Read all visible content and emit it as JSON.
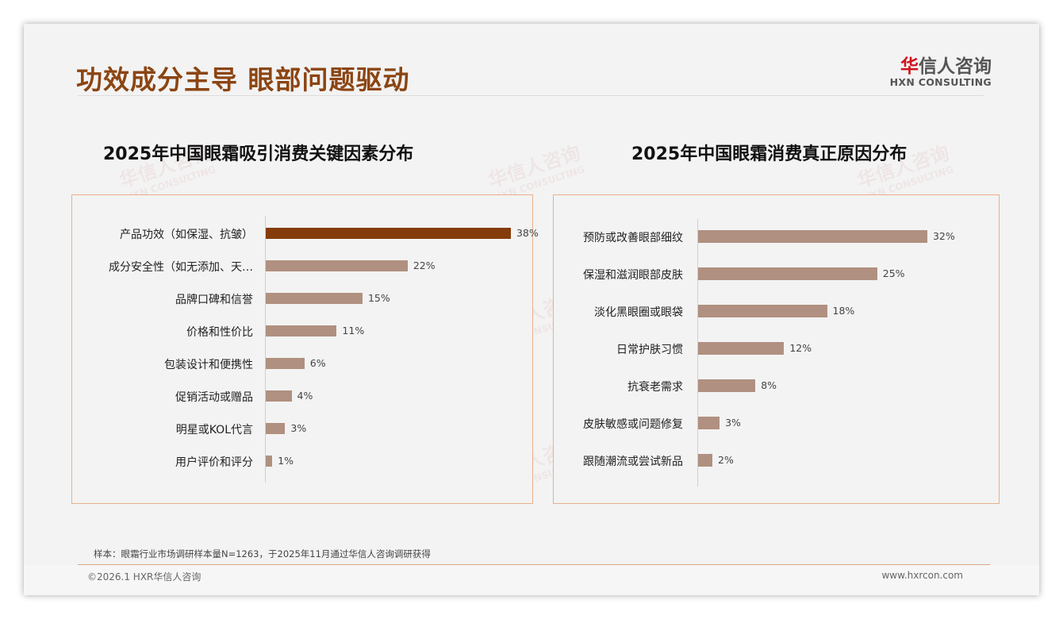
{
  "header": {
    "title": "功效成分主导 眼部问题驱动",
    "logo_cn_red": "华",
    "logo_cn": "信人咨询",
    "logo_en": "HXN CONSULTING"
  },
  "watermark": {
    "cn": "华信人咨询",
    "en": "HXN CONSULTING"
  },
  "colors": {
    "highlight": "#843c0c",
    "bar": "#b09080",
    "title": "#8b4513"
  },
  "chart_data": [
    {
      "type": "bar",
      "orientation": "horizontal",
      "title": "2025年中国眼霜吸引消费关键因素分布",
      "categories": [
        "产品功效（如保湿、抗皱）",
        "成分安全性（如无添加、天…",
        "品牌口碑和信誉",
        "价格和性价比",
        "包装设计和便携性",
        "促销活动或赠品",
        "明星或KOL代言",
        "用户评价和评分"
      ],
      "values": [
        38,
        22,
        15,
        11,
        6,
        4,
        3,
        1
      ],
      "labels": [
        "38%",
        "22%",
        "15%",
        "11%",
        "6%",
        "4%",
        "3%",
        "1%"
      ],
      "unit": "%",
      "highlight_index": 0,
      "xlim": [
        0,
        38
      ]
    },
    {
      "type": "bar",
      "orientation": "horizontal",
      "title": "2025年中国眼霜消费真正原因分布",
      "categories": [
        "预防或改善眼部细纹",
        "保湿和滋润眼部皮肤",
        "淡化黑眼圈或眼袋",
        "日常护肤习惯",
        "抗衰老需求",
        "皮肤敏感或问题修复",
        "跟随潮流或尝试新品"
      ],
      "values": [
        32,
        25,
        18,
        12,
        8,
        3,
        2
      ],
      "labels": [
        "32%",
        "25%",
        "18%",
        "12%",
        "8%",
        "3%",
        "2%"
      ],
      "unit": "%",
      "highlight_index": -1,
      "xlim": [
        0,
        32
      ]
    }
  ],
  "footer": {
    "note": "样本：眼霜行业市场调研样本量N=1263，于2025年11月通过华信人咨询调研获得",
    "copyright": "©2026.1 HXR华信人咨询",
    "website": "www.hxrcon.com"
  }
}
